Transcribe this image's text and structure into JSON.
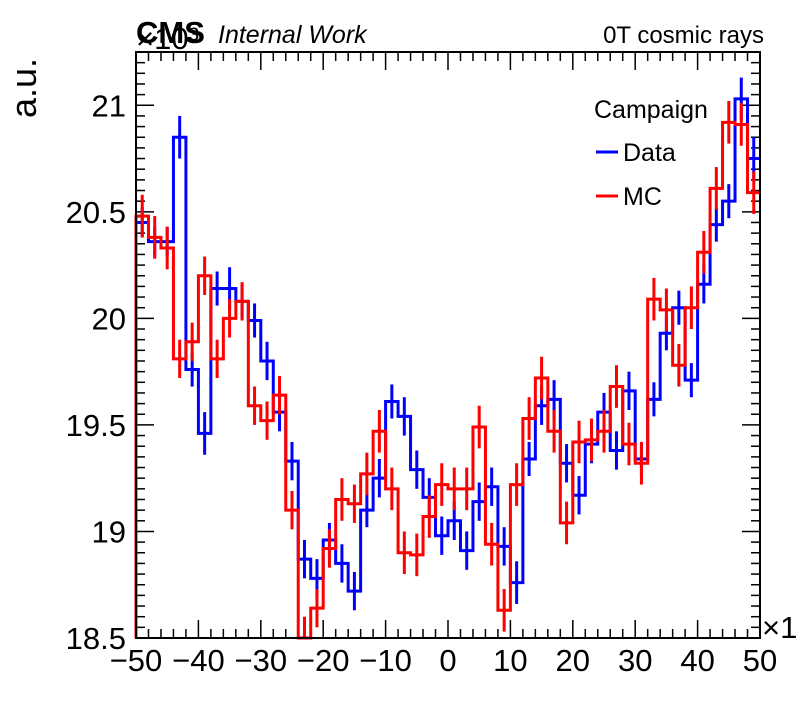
{
  "header": {
    "experiment": "CMS",
    "status": "Internal Work",
    "condition": "0T cosmic rays"
  },
  "chart_data": {
    "type": "line",
    "style": "step-histogram with vertical error bars",
    "title": "",
    "xlabel": "",
    "ylabel": "a.u.",
    "x_exponent_label": "×1",
    "y_exponent_label": "×10³",
    "xlim": [
      -50,
      50
    ],
    "ylim": [
      18.5,
      21.25
    ],
    "x_ticks": [
      -50,
      -40,
      -30,
      -20,
      -10,
      0,
      10,
      20,
      30,
      40,
      50
    ],
    "x_tick_labels": [
      "−50",
      "−40",
      "−30",
      "−20",
      "−10",
      "0",
      "10",
      "20",
      "30",
      "40",
      "50"
    ],
    "y_ticks": [
      18.5,
      19,
      19.5,
      20,
      20.5,
      21
    ],
    "y_tick_labels": [
      "18.5",
      "19",
      "19.5",
      "20",
      "20.5",
      "21"
    ],
    "grid": false,
    "legend": {
      "title": "Campaign",
      "position": "top-right"
    },
    "bin_edges": [
      -50,
      -48,
      -46,
      -44,
      -42,
      -40,
      -38,
      -36,
      -34,
      -32,
      -30,
      -28,
      -26,
      -24,
      -22,
      -20,
      -18,
      -16,
      -14,
      -12,
      -10,
      -8,
      -6,
      -4,
      -2,
      0,
      2,
      4,
      6,
      8,
      10,
      12,
      14,
      16,
      18,
      20,
      22,
      24,
      26,
      28,
      30,
      32,
      34,
      36,
      38,
      40,
      42,
      44,
      46,
      48,
      50
    ],
    "series": [
      {
        "name": "Data",
        "color": "#0000ff",
        "values": [
          20.45,
          20.36,
          20.36,
          20.85,
          19.76,
          19.46,
          20.14,
          20.14,
          20.08,
          19.99,
          19.8,
          19.56,
          19.33,
          18.87,
          18.78,
          18.96,
          18.85,
          18.72,
          19.1,
          19.25,
          19.61,
          19.54,
          19.29,
          19.16,
          18.98,
          19.05,
          18.91,
          19.14,
          19.21,
          18.93,
          18.76,
          19.34,
          19.59,
          19.62,
          19.32,
          19.17,
          19.41,
          19.56,
          19.38,
          19.66,
          19.34,
          19.62,
          19.93,
          20.05,
          19.71,
          20.16,
          20.44,
          20.55,
          21.03,
          20.75,
          20.1
        ],
        "errors": [
          0.07,
          0.07,
          0.07,
          0.1,
          0.08,
          0.1,
          0.08,
          0.1,
          0.08,
          0.08,
          0.09,
          0.09,
          0.09,
          0.09,
          0.09,
          0.08,
          0.09,
          0.09,
          0.08,
          0.09,
          0.08,
          0.09,
          0.09,
          0.09,
          0.09,
          0.09,
          0.09,
          0.09,
          0.09,
          0.09,
          0.1,
          0.08,
          0.09,
          0.09,
          0.09,
          0.09,
          0.09,
          0.09,
          0.09,
          0.09,
          0.08,
          0.08,
          0.08,
          0.08,
          0.08,
          0.09,
          0.08,
          0.08,
          0.1,
          0.1,
          0.1
        ]
      },
      {
        "name": "MC",
        "color": "#ff0000",
        "values": [
          20.48,
          20.38,
          20.33,
          19.81,
          19.89,
          20.2,
          19.81,
          20.0,
          20.08,
          19.59,
          19.52,
          19.64,
          19.1,
          18.5,
          18.64,
          18.92,
          19.15,
          19.13,
          19.27,
          19.47,
          19.2,
          18.9,
          18.89,
          19.07,
          19.22,
          19.2,
          19.2,
          19.49,
          18.94,
          18.63,
          19.22,
          19.53,
          19.72,
          19.47,
          19.04,
          19.42,
          19.43,
          19.47,
          19.68,
          19.41,
          19.32,
          20.09,
          20.04,
          19.78,
          20.05,
          20.31,
          20.61,
          20.92,
          20.91,
          20.59,
          20.59
        ],
        "errors": [
          0.1,
          0.1,
          0.1,
          0.09,
          0.09,
          0.09,
          0.09,
          0.09,
          0.09,
          0.09,
          0.09,
          0.09,
          0.09,
          0.1,
          0.09,
          0.09,
          0.1,
          0.09,
          0.1,
          0.1,
          0.1,
          0.1,
          0.1,
          0.1,
          0.1,
          0.1,
          0.1,
          0.1,
          0.1,
          0.1,
          0.1,
          0.1,
          0.1,
          0.1,
          0.1,
          0.1,
          0.1,
          0.1,
          0.1,
          0.1,
          0.1,
          0.1,
          0.1,
          0.1,
          0.1,
          0.1,
          0.1,
          0.1,
          0.1,
          0.1,
          0.1
        ]
      }
    ]
  }
}
